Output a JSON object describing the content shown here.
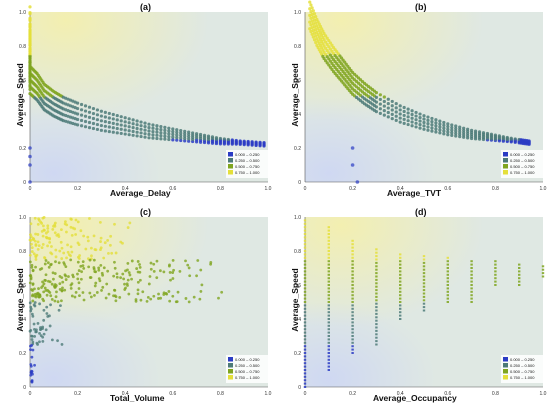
{
  "legend_items": [
    {
      "label": "0.000 – 0.250",
      "color": "#2b3cc4"
    },
    {
      "label": "0.250 – 0.500",
      "color": "#4c7a78"
    },
    {
      "label": "0.500 – 0.750",
      "color": "#7fa51f"
    },
    {
      "label": "0.750 – 1.000",
      "color": "#e4df3a"
    }
  ],
  "chart_data": [
    {
      "panel": "(a)",
      "type": "scatter",
      "title": "(a)",
      "xlabel": "Average_Delay",
      "ylabel": "Average_Speed",
      "xlim": [
        0,
        1
      ],
      "ylim": [
        0,
        1
      ],
      "xticks": [
        "0",
        "0.2",
        "0.4",
        "0.6",
        "0.8",
        "1.0"
      ],
      "yticks": [
        "0",
        "0.2",
        "0.4",
        "0.6",
        "0.8",
        "1.0"
      ],
      "pattern": "curve",
      "series": [
        {
          "x": [
            0,
            0,
            0,
            0.03,
            0.06,
            0.1,
            0.14,
            0.2,
            0.3,
            0.4,
            0.5,
            0.6,
            0.7,
            0.8,
            0.9,
            1.0
          ],
          "y": [
            0.95,
            0.75,
            0.6,
            0.56,
            0.5,
            0.46,
            0.43,
            0.4,
            0.36,
            0.33,
            0.3,
            0.28,
            0.26,
            0.24,
            0.23,
            0.22
          ]
        }
      ],
      "outliers": [
        [
          0,
          0.2
        ],
        [
          0,
          0.15
        ],
        [
          0,
          0.1
        ],
        [
          0,
          0.0
        ]
      ]
    },
    {
      "panel": "(b)",
      "type": "scatter",
      "title": "(b)",
      "xlabel": "Average_TVT",
      "ylabel": "Average_Speed",
      "xlim": [
        0,
        1
      ],
      "ylim": [
        0,
        1
      ],
      "xticks": [
        "0",
        "0.2",
        "0.4",
        "0.6",
        "0.8",
        "1.0"
      ],
      "yticks": [
        "0",
        "0.2",
        "0.4",
        "0.6",
        "0.8",
        "1.0"
      ],
      "pattern": "curve",
      "series": [
        {
          "x": [
            0.02,
            0.05,
            0.08,
            0.12,
            0.16,
            0.2,
            0.25,
            0.3,
            0.4,
            0.5,
            0.6,
            0.7,
            0.8,
            0.9,
            0.95
          ],
          "y": [
            0.98,
            0.88,
            0.8,
            0.72,
            0.65,
            0.58,
            0.52,
            0.47,
            0.4,
            0.35,
            0.31,
            0.28,
            0.26,
            0.24,
            0.23
          ]
        }
      ],
      "outliers": [
        [
          0.2,
          0.2
        ],
        [
          0.2,
          0.1
        ],
        [
          0.22,
          0.0
        ]
      ]
    },
    {
      "panel": "(c)",
      "type": "scatter",
      "title": "(c)",
      "xlabel": "Total_Volume",
      "ylabel": "Average_Speed",
      "xlim": [
        0,
        1
      ],
      "ylim": [
        0,
        1
      ],
      "xticks": [
        "0",
        "0.2",
        "0.4",
        "0.6",
        "0.8",
        "1.0"
      ],
      "yticks": [
        "0",
        "0.2",
        "0.4",
        "0.6",
        "0.8",
        "1.0"
      ],
      "pattern": "bands",
      "bands": [
        {
          "ymin": 0.75,
          "ymax": 1.0,
          "xmax": 0.45
        },
        {
          "ymin": 0.5,
          "ymax": 0.75,
          "xmax": 0.88
        },
        {
          "ymin": 0.25,
          "ymax": 0.5,
          "xmax": 0.15
        },
        {
          "ymin": 0.0,
          "ymax": 0.25,
          "xmax": 0.02
        }
      ]
    },
    {
      "panel": "(d)",
      "type": "scatter",
      "title": "(d)",
      "xlabel": "Average_Occupancy",
      "ylabel": "Average_Speed",
      "xlim": [
        0,
        1
      ],
      "ylim": [
        0,
        1
      ],
      "xticks": [
        "0",
        "0.2",
        "0.4",
        "0.6",
        "0.8",
        "1.0"
      ],
      "yticks": [
        "0",
        "0.2",
        "0.4",
        "0.6",
        "0.8",
        "1.0"
      ],
      "pattern": "columns",
      "columns": [
        {
          "x": 0.0,
          "ymin": 0.0,
          "ymax": 1.0
        },
        {
          "x": 0.1,
          "ymin": 0.1,
          "ymax": 0.95
        },
        {
          "x": 0.2,
          "ymin": 0.2,
          "ymax": 0.88
        },
        {
          "x": 0.3,
          "ymin": 0.25,
          "ymax": 0.82
        },
        {
          "x": 0.4,
          "ymin": 0.4,
          "ymax": 0.8
        },
        {
          "x": 0.5,
          "ymin": 0.45,
          "ymax": 0.78
        },
        {
          "x": 0.6,
          "ymin": 0.5,
          "ymax": 0.78
        },
        {
          "x": 0.7,
          "ymin": 0.5,
          "ymax": 0.76
        },
        {
          "x": 0.8,
          "ymin": 0.6,
          "ymax": 0.75
        },
        {
          "x": 0.9,
          "ymin": 0.6,
          "ymax": 0.73
        },
        {
          "x": 1.0,
          "ymin": 0.65,
          "ymax": 0.72
        }
      ]
    }
  ]
}
